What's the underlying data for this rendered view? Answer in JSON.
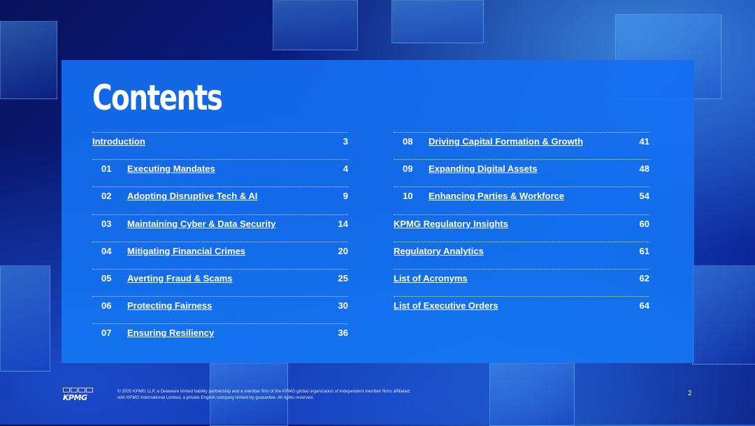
{
  "title": "Contents",
  "left_items": [
    {
      "num": "",
      "label": "Introduction",
      "page": "3"
    },
    {
      "num": "01",
      "label": "Executing Mandates",
      "page": "4"
    },
    {
      "num": "02",
      "label": "Adopting Disruptive Tech & AI",
      "page": "9"
    },
    {
      "num": "03",
      "label": "Maintaining Cyber & Data Security",
      "page": "14"
    },
    {
      "num": "04",
      "label": "Mitigating Financial Crimes",
      "page": "20"
    },
    {
      "num": "05",
      "label": "Averting Fraud & Scams",
      "page": "25"
    },
    {
      "num": "06",
      "label": "Protecting Fairness",
      "page": "30"
    },
    {
      "num": "07",
      "label": "Ensuring Resiliency",
      "page": "36"
    }
  ],
  "right_items": [
    {
      "num": "08",
      "label": "Driving Capital Formation & Growth",
      "page": "41"
    },
    {
      "num": "09",
      "label": "Expanding Digital Assets",
      "page": "48"
    },
    {
      "num": "10",
      "label": "Enhancing Parties & Workforce",
      "page": "54"
    },
    {
      "num": "",
      "label": "KPMG Regulatory Insights",
      "page": "60"
    },
    {
      "num": "",
      "label": "Regulatory Analytics",
      "page": "61"
    },
    {
      "num": "",
      "label": "List of Acronyms",
      "page": "62"
    },
    {
      "num": "",
      "label": "List of Executive Orders",
      "page": "64"
    }
  ],
  "footer": {
    "logo": "KPMG",
    "legal": "© 2025 KPMG LLP, a Delaware limited liability partnership and a member firm of the KPMG global organization of independent member firms affiliated with KPMG International Limited, a private English company limited by guarantee. All rights reserved.",
    "page_number": "2"
  }
}
